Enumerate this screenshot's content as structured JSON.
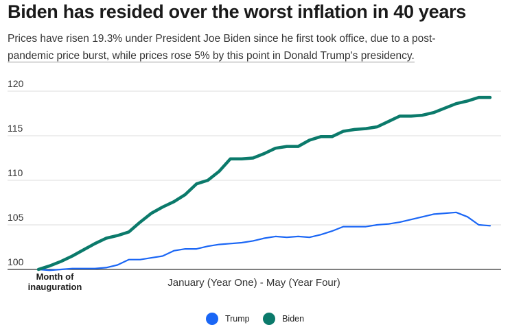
{
  "header": {
    "title": "Biden has resided over the worst inflation in 40 years",
    "subtitle_part1": "Prices have risen 19.3% under President Joe Biden since he first took office, due to a post-",
    "subtitle_part2": "pandemic price burst, while prices rose 5% by this point in Donald Trump's presidency."
  },
  "colors": {
    "trump": "#1a66f5",
    "biden": "#0b7a6b",
    "grid": "#dddddd",
    "baseline": "#333333"
  },
  "chart_data": {
    "type": "line",
    "title": "Biden has resided over the worst inflation in 40 years",
    "xlabel": "January (Year One) - May (Year Four)",
    "x_start_label": "Month of inauguration",
    "ylim": [
      100,
      120
    ],
    "yticks": [
      100,
      105,
      110,
      115,
      120
    ],
    "grid": true,
    "legend_position": "bottom",
    "series": [
      {
        "name": "Trump",
        "values": [
          100,
          99.9,
          100.0,
          100.1,
          100.1,
          100.1,
          100.2,
          100.5,
          101.1,
          101.1,
          101.3,
          101.5,
          102.1,
          102.3,
          102.3,
          102.6,
          102.8,
          102.9,
          103.0,
          103.2,
          103.5,
          103.7,
          103.6,
          103.7,
          103.6,
          103.9,
          104.3,
          104.8,
          104.8,
          104.8,
          105.0,
          105.1,
          105.3,
          105.6,
          105.9,
          106.2,
          106.3,
          106.4,
          105.9,
          105.0,
          104.9
        ]
      },
      {
        "name": "Biden",
        "values": [
          100,
          100.4,
          100.9,
          101.5,
          102.2,
          102.9,
          103.5,
          103.8,
          104.2,
          105.3,
          106.3,
          107.0,
          107.6,
          108.4,
          109.6,
          110.0,
          111.0,
          112.4,
          112.4,
          112.5,
          113.0,
          113.6,
          113.8,
          113.8,
          114.5,
          114.9,
          114.9,
          115.5,
          115.7,
          115.8,
          116.0,
          116.6,
          117.2,
          117.2,
          117.3,
          117.6,
          118.1,
          118.6,
          118.9,
          119.3,
          119.3
        ]
      }
    ]
  }
}
